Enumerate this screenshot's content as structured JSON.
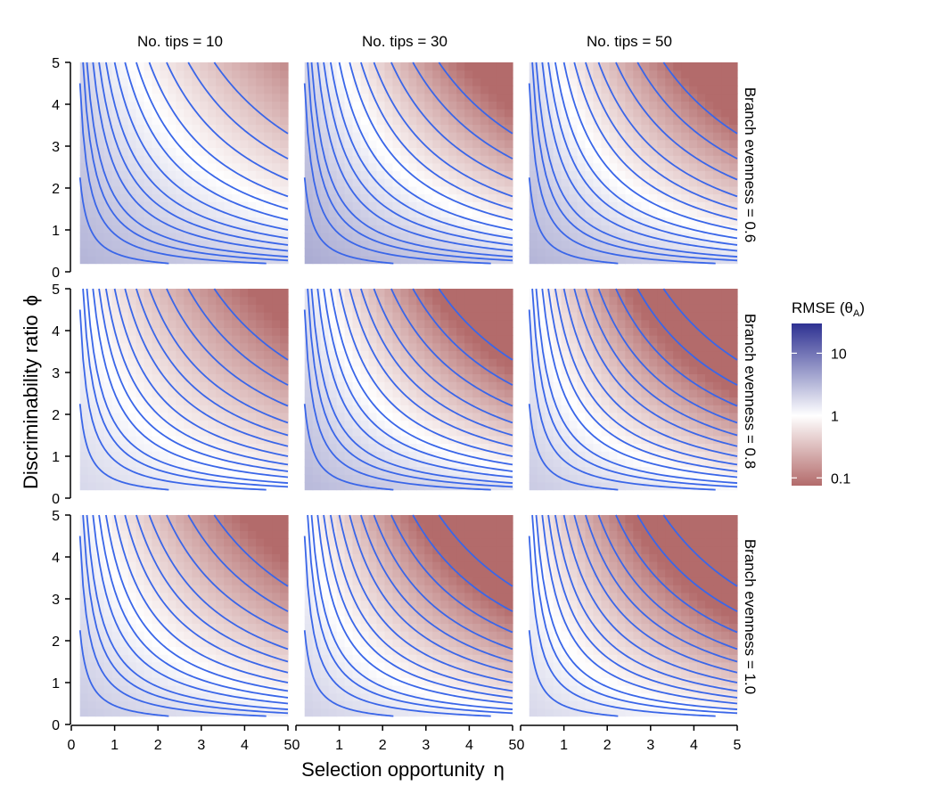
{
  "chart_data": {
    "type": "heatmap",
    "title": "",
    "xlabel": "Selection opportunity",
    "xlabel_symbol": "η",
    "ylabel": "Discriminability ratio",
    "ylabel_symbol": "ϕ",
    "xlim": [
      0,
      5
    ],
    "ylim": [
      0,
      5
    ],
    "x_ticks": [
      "0",
      "1",
      "2",
      "3",
      "4",
      "5"
    ],
    "y_ticks": [
      "0",
      "1",
      "2",
      "3",
      "4",
      "5"
    ],
    "data_domain": {
      "x": [
        0.2,
        5
      ],
      "y": [
        0.2,
        5
      ]
    },
    "columns": [
      "No. tips = 10",
      "No. tips = 30",
      "No. tips = 50"
    ],
    "rows": [
      "Branch evenness = 0.6",
      "Branch evenness = 0.8",
      "Branch evenness = 1.0"
    ],
    "contour_products": [
      0.45,
      0.9,
      1.35,
      1.8,
      2.5,
      3.2,
      4.0,
      5.0,
      6.2,
      7.5,
      9.0,
      11.0,
      13.5,
      16.5
    ],
    "legend": {
      "title": "RMSE (θ",
      "title_sub": "A",
      "title_end": ")",
      "tick_labels": [
        "10",
        "1",
        "0.1"
      ],
      "tick_values": [
        10,
        1,
        0.1
      ],
      "range": [
        0.075,
        30
      ],
      "colors": {
        "low": "#b36b6b",
        "mid": "#ffffff",
        "high": "#2e3192"
      }
    },
    "panels": [
      {
        "col": 0,
        "row": 0,
        "log10_rmse_at_origin": 0.55,
        "decline_rate": 0.042
      },
      {
        "col": 1,
        "row": 0,
        "log10_rmse_at_origin": 0.62,
        "decline_rate": 0.072
      },
      {
        "col": 2,
        "row": 0,
        "log10_rmse_at_origin": 0.55,
        "decline_rate": 0.075
      },
      {
        "col": 0,
        "row": 1,
        "log10_rmse_at_origin": 0.3,
        "decline_rate": 0.052
      },
      {
        "col": 1,
        "row": 1,
        "log10_rmse_at_origin": 0.52,
        "decline_rate": 0.085
      },
      {
        "col": 2,
        "row": 1,
        "log10_rmse_at_origin": 0.4,
        "decline_rate": 0.098
      },
      {
        "col": 0,
        "row": 2,
        "log10_rmse_at_origin": 0.4,
        "decline_rate": 0.06
      },
      {
        "col": 1,
        "row": 2,
        "log10_rmse_at_origin": 0.35,
        "decline_rate": 0.085
      },
      {
        "col": 2,
        "row": 2,
        "log10_rmse_at_origin": 0.3,
        "decline_rate": 0.09
      }
    ],
    "contour_color": "#3a66e8"
  }
}
